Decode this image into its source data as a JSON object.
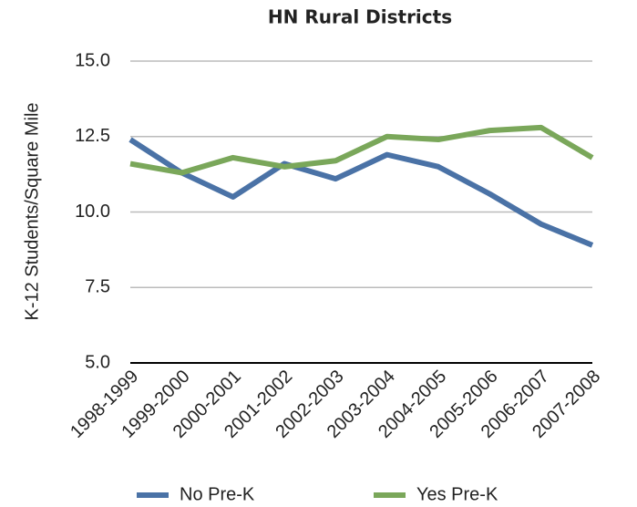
{
  "chart_data": {
    "type": "line",
    "title": "HN Rural Districts",
    "y_label": "K-12 Students/Square Mile",
    "categories": [
      "1998-1999",
      "1999-2000",
      "2000-2001",
      "2001-2002",
      "2002-2003",
      "2003-2004",
      "2004-2005",
      "2005-2006",
      "2006-2007",
      "2007-2008"
    ],
    "series": [
      {
        "name": "No Pre-K",
        "color": "#4a72a6",
        "values": [
          12.4,
          11.3,
          10.5,
          11.6,
          11.1,
          11.9,
          11.5,
          10.6,
          9.6,
          8.9
        ]
      },
      {
        "name": "Yes Pre-K",
        "color": "#7aa75a",
        "values": [
          11.6,
          11.3,
          11.8,
          11.5,
          11.7,
          12.5,
          12.4,
          12.7,
          12.8,
          11.8
        ]
      }
    ],
    "ylim": [
      5,
      15
    ],
    "yticks": [
      {
        "value": 5,
        "label": "5.0"
      },
      {
        "value": 7.5,
        "label": "7.5"
      },
      {
        "value": 10,
        "label": "10.0"
      },
      {
        "value": 12.5,
        "label": "12.5"
      },
      {
        "value": 15,
        "label": "15.0"
      }
    ],
    "grid": true,
    "legend": "bottom"
  }
}
